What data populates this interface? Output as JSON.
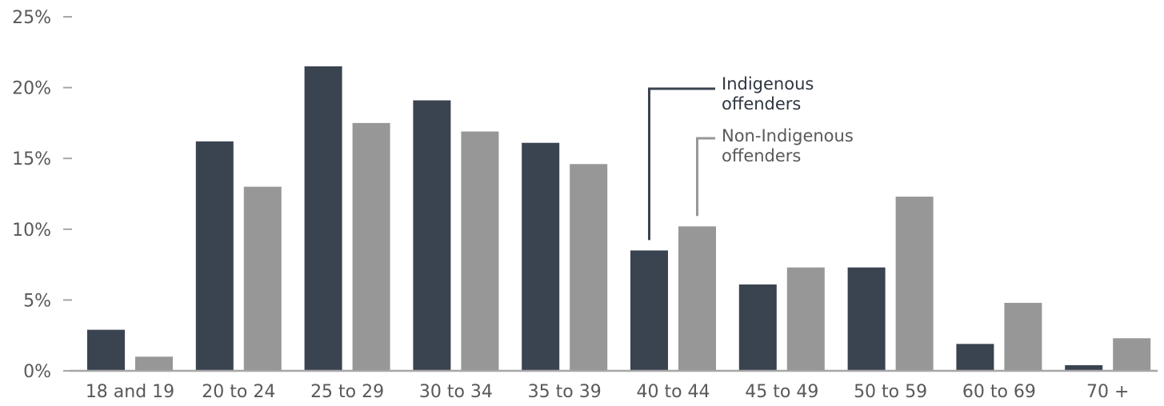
{
  "chart_data": {
    "type": "bar",
    "categories": [
      "18 and 19",
      "20 to 24",
      "25 to 29",
      "30 to 34",
      "35 to 39",
      "40 to 44",
      "45 to 49",
      "50 to 59",
      "60 to 69",
      "70 +"
    ],
    "series": [
      {
        "name": "Indigenous offenders",
        "name_lines": [
          "Indigenous",
          "offenders"
        ],
        "color": "#3a4350",
        "values": [
          2.9,
          16.2,
          21.5,
          19.1,
          16.1,
          8.5,
          6.1,
          7.3,
          1.9,
          0.4
        ]
      },
      {
        "name": "Non-Indigenous offenders",
        "name_lines": [
          "Non-Indigenous",
          "offenders"
        ],
        "color": "#979797",
        "values": [
          1.0,
          13.0,
          17.5,
          16.9,
          14.6,
          10.2,
          7.3,
          12.3,
          4.8,
          2.3
        ]
      }
    ],
    "yticks": [
      "0%",
      "5%",
      "10%",
      "15%",
      "20%",
      "25%"
    ],
    "ylim": [
      0,
      25
    ],
    "title": "",
    "xlabel": "",
    "ylabel": "",
    "grid": false,
    "legend": "callout labels pointing to the 40 to 44 bars",
    "axis_color": "#a6a6a6",
    "text_color": "#595959"
  }
}
